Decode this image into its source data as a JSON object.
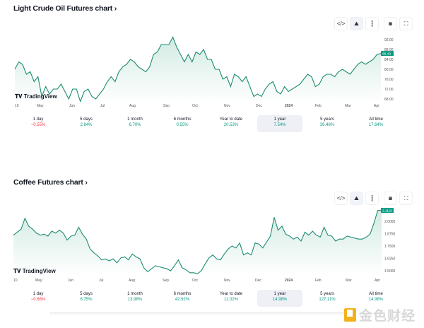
{
  "sections": [
    {
      "title": "Light Crude Oil Futures chart",
      "chevron": "›",
      "toolbar": [
        "embed-icon",
        "area-chart-icon",
        "candles-icon",
        "camera-icon",
        "fullscreen-icon"
      ],
      "logo": "TradingView",
      "selected_period": "1 year",
      "stats": [
        {
          "label": "1 day",
          "value": "−0.55%",
          "dir": "neg"
        },
        {
          "label": "5 days",
          "value": "2.84%",
          "dir": "pos"
        },
        {
          "label": "1 month",
          "value": "6.70%",
          "dir": "pos"
        },
        {
          "label": "6 months",
          "value": "0.55%",
          "dir": "pos"
        },
        {
          "label": "Year to date",
          "value": "20.53%",
          "dir": "pos"
        },
        {
          "label": "1 year",
          "value": "7.54%",
          "dir": "pos"
        },
        {
          "label": "5 years",
          "value": "36.48%",
          "dir": "pos"
        },
        {
          "label": "All time",
          "value": "17.64%",
          "dir": "pos"
        }
      ]
    },
    {
      "title": "Coffee Futures chart",
      "chevron": "›",
      "toolbar": [
        "embed-icon",
        "area-chart-icon",
        "candles-icon",
        "camera-icon",
        "fullscreen-icon"
      ],
      "logo": "TradingView",
      "selected_period": "1 year",
      "stats": [
        {
          "label": "1 day",
          "value": "−0.66%",
          "dir": "neg"
        },
        {
          "label": "5 days",
          "value": "6.75%",
          "dir": "pos"
        },
        {
          "label": "1 month",
          "value": "13.98%",
          "dir": "pos"
        },
        {
          "label": "6 months",
          "value": "42.92%",
          "dir": "pos"
        },
        {
          "label": "Year to date",
          "value": "11.02%",
          "dir": "pos"
        },
        {
          "label": "1 year",
          "value": "14.98%",
          "dir": "pos"
        },
        {
          "label": "5 years",
          "value": "127.11%",
          "dir": "pos"
        },
        {
          "label": "All time",
          "value": "14.98%",
          "dir": "pos"
        }
      ]
    }
  ],
  "watermark": "金色财经",
  "colors": {
    "line": "#1e8c74",
    "fill": "#cfe9e0",
    "positive": "#089981",
    "negative": "#f23645",
    "selected_bg": "#eef0f6"
  },
  "chart_data": [
    {
      "type": "area",
      "x_ticks": [
        "10",
        "May",
        "Jun",
        "Jul",
        "Aug",
        "Sep",
        "Oct",
        "Nov",
        "Dec",
        "2024",
        "Feb",
        "Mar",
        "Apr"
      ],
      "y_ticks": [
        "92.00",
        "88.00",
        "84.00",
        "80.00",
        "76.00",
        "72.00",
        "68.00"
      ],
      "ylim": [
        68,
        92
      ],
      "last_value_label": "86.43",
      "grid": false,
      "values": [
        80,
        83,
        82,
        78,
        79,
        75,
        77,
        69,
        73,
        70,
        72,
        72,
        74,
        71,
        68,
        72,
        72,
        67,
        71,
        72,
        69,
        68,
        70,
        72,
        75,
        77,
        75,
        79,
        81,
        82,
        84,
        83,
        81,
        80,
        79,
        81,
        86,
        87,
        90,
        90,
        90,
        93,
        89,
        86,
        83,
        86,
        83,
        87,
        86,
        88,
        84,
        84,
        80,
        80,
        76,
        77,
        73,
        78,
        77,
        75,
        77,
        73,
        69,
        70,
        69,
        72,
        74,
        75,
        71,
        70,
        73,
        71,
        72,
        73,
        74,
        76,
        78,
        77,
        73,
        74,
        77,
        78,
        78,
        77,
        79,
        80,
        79,
        78,
        80,
        82,
        83,
        82,
        83,
        84,
        86,
        86.4
      ]
    },
    {
      "type": "area",
      "x_ticks": [
        "10",
        "May",
        "Jun",
        "Jul",
        "Aug",
        "Sep",
        "Oct",
        "Nov",
        "Dec",
        "2024",
        "Feb",
        "Mar",
        "Apr"
      ],
      "y_ticks": [
        "2.0000",
        "1.8750",
        "1.7500",
        "1.6250",
        "1.5000"
      ],
      "ylim": [
        1.45,
        2.12
      ],
      "last_value_label": "2.1110",
      "grid": false,
      "values": [
        1.86,
        1.89,
        1.92,
        2.03,
        1.95,
        1.92,
        1.88,
        1.86,
        1.87,
        1.85,
        1.9,
        1.88,
        1.91,
        1.88,
        1.81,
        1.85,
        1.86,
        1.94,
        1.87,
        1.82,
        1.72,
        1.68,
        1.65,
        1.61,
        1.62,
        1.6,
        1.62,
        1.58,
        1.63,
        1.64,
        1.61,
        1.67,
        1.64,
        1.62,
        1.53,
        1.49,
        1.52,
        1.55,
        1.54,
        1.53,
        1.52,
        1.5,
        1.55,
        1.61,
        1.53,
        1.51,
        1.48,
        1.48,
        1.47,
        1.5,
        1.57,
        1.63,
        1.66,
        1.62,
        1.61,
        1.67,
        1.72,
        1.75,
        1.73,
        1.78,
        1.66,
        1.68,
        1.66,
        1.78,
        1.77,
        1.73,
        1.79,
        1.85,
        2.04,
        1.91,
        1.95,
        1.87,
        1.85,
        1.82,
        1.84,
        1.8,
        1.89,
        1.86,
        1.9,
        1.86,
        1.84,
        1.94,
        1.86,
        1.85,
        1.8,
        1.82,
        1.82,
        1.85,
        1.84,
        1.83,
        1.82,
        1.82,
        1.84,
        1.87,
        1.98,
        2.11,
        2.11
      ]
    }
  ]
}
